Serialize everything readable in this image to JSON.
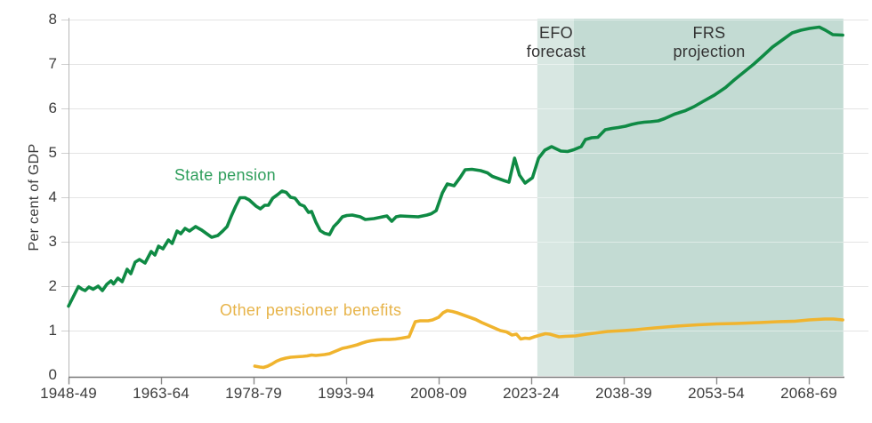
{
  "chart_data": {
    "type": "line",
    "title": "",
    "ylabel": "Per cent of GDP",
    "xlabel": "",
    "ylim": [
      0,
      8
    ],
    "xlim": [
      1948,
      2077.6
    ],
    "grid": true,
    "legend_position": "inline-labels",
    "y_axis": {
      "ticks": [
        0,
        1,
        2,
        3,
        4,
        5,
        6,
        7,
        8
      ]
    },
    "x_axis": {
      "ticks": [
        {
          "year": 1948,
          "label": "1948-49"
        },
        {
          "year": 1963,
          "label": "1963-64"
        },
        {
          "year": 1978,
          "label": "1978-79"
        },
        {
          "year": 1993,
          "label": "1993-94"
        },
        {
          "year": 2008,
          "label": "2008-09"
        },
        {
          "year": 2023,
          "label": "2023-24"
        },
        {
          "year": 2038,
          "label": "2038-39"
        },
        {
          "year": 2053,
          "label": "2053-54"
        },
        {
          "year": 2068,
          "label": "2068-69"
        }
      ]
    },
    "bands": [
      {
        "id": "efo",
        "name": "EFO forecast",
        "label_line1": "EFO",
        "label_line2": "forecast",
        "start_year": 2024.0,
        "end_year": 2029.9,
        "color": "#d8e7e2"
      },
      {
        "id": "frs",
        "name": "FRS projection",
        "label_line1": "FRS",
        "label_line2": "projection",
        "start_year": 2029.9,
        "end_year": 2073.6,
        "color": "#c3dbd3"
      }
    ],
    "series": [
      {
        "name": "State pension",
        "color": "#0f8a44",
        "label_color": "#2f9e5c",
        "points": [
          [
            1948,
            1.55
          ],
          [
            1949.6,
            1.99
          ],
          [
            1950.2,
            1.93
          ],
          [
            1950.7,
            1.9
          ],
          [
            1951.3,
            1.98
          ],
          [
            1952,
            1.93
          ],
          [
            1952.8,
            2.0
          ],
          [
            1953.5,
            1.9
          ],
          [
            1954.2,
            2.04
          ],
          [
            1954.9,
            2.12
          ],
          [
            1955.3,
            2.05
          ],
          [
            1956,
            2.18
          ],
          [
            1956.7,
            2.1
          ],
          [
            1957.5,
            2.38
          ],
          [
            1958.1,
            2.28
          ],
          [
            1958.8,
            2.54
          ],
          [
            1959.5,
            2.6
          ],
          [
            1960.4,
            2.52
          ],
          [
            1961.4,
            2.78
          ],
          [
            1962,
            2.7
          ],
          [
            1962.6,
            2.9
          ],
          [
            1963.3,
            2.84
          ],
          [
            1964.2,
            3.04
          ],
          [
            1964.8,
            2.96
          ],
          [
            1965.6,
            3.24
          ],
          [
            1966.2,
            3.18
          ],
          [
            1966.9,
            3.3
          ],
          [
            1967.6,
            3.24
          ],
          [
            1968.6,
            3.34
          ],
          [
            1969.6,
            3.26
          ],
          [
            1970.3,
            3.19
          ],
          [
            1971.2,
            3.1
          ],
          [
            1972.2,
            3.14
          ],
          [
            1973,
            3.24
          ],
          [
            1973.7,
            3.34
          ],
          [
            1974.4,
            3.58
          ],
          [
            1975.1,
            3.8
          ],
          [
            1975.8,
            3.99
          ],
          [
            1976.6,
            3.99
          ],
          [
            1977.3,
            3.94
          ],
          [
            1978.4,
            3.8
          ],
          [
            1979.1,
            3.74
          ],
          [
            1979.8,
            3.82
          ],
          [
            1980.4,
            3.82
          ],
          [
            1981.1,
            3.98
          ],
          [
            1981.9,
            4.06
          ],
          [
            1982.6,
            4.14
          ],
          [
            1983.3,
            4.11
          ],
          [
            1984,
            4.0
          ],
          [
            1984.7,
            3.98
          ],
          [
            1985.5,
            3.84
          ],
          [
            1986.2,
            3.8
          ],
          [
            1986.9,
            3.66
          ],
          [
            1987.4,
            3.68
          ],
          [
            1988.1,
            3.44
          ],
          [
            1988.8,
            3.25
          ],
          [
            1989.5,
            3.19
          ],
          [
            1990.3,
            3.16
          ],
          [
            1991,
            3.34
          ],
          [
            1991.7,
            3.44
          ],
          [
            1992.4,
            3.56
          ],
          [
            1993.1,
            3.59
          ],
          [
            1994,
            3.6
          ],
          [
            1995.3,
            3.56
          ],
          [
            1996.1,
            3.5
          ],
          [
            1997.5,
            3.52
          ],
          [
            1998.9,
            3.56
          ],
          [
            1999.6,
            3.58
          ],
          [
            2000.4,
            3.46
          ],
          [
            2001.1,
            3.56
          ],
          [
            2001.8,
            3.58
          ],
          [
            2003.2,
            3.57
          ],
          [
            2004.7,
            3.56
          ],
          [
            2006.1,
            3.6
          ],
          [
            2006.8,
            3.63
          ],
          [
            2007.6,
            3.7
          ],
          [
            2008.6,
            4.1
          ],
          [
            2009.4,
            4.3
          ],
          [
            2010.5,
            4.26
          ],
          [
            2011.5,
            4.45
          ],
          [
            2012.3,
            4.62
          ],
          [
            2013.4,
            4.63
          ],
          [
            2014.8,
            4.6
          ],
          [
            2015.9,
            4.55
          ],
          [
            2016.7,
            4.47
          ],
          [
            2017.7,
            4.42
          ],
          [
            2018.7,
            4.37
          ],
          [
            2019.4,
            4.34
          ],
          [
            2020.3,
            4.88
          ],
          [
            2021.1,
            4.5
          ],
          [
            2022,
            4.32
          ],
          [
            2023.2,
            4.44
          ],
          [
            2024.2,
            4.88
          ],
          [
            2025.2,
            5.06
          ],
          [
            2026.3,
            5.14
          ],
          [
            2027.8,
            5.04
          ],
          [
            2028.9,
            5.03
          ],
          [
            2029.9,
            5.07
          ],
          [
            2031.1,
            5.14
          ],
          [
            2031.8,
            5.3
          ],
          [
            2032.8,
            5.34
          ],
          [
            2033.8,
            5.35
          ],
          [
            2035,
            5.52
          ],
          [
            2036.1,
            5.55
          ],
          [
            2037.1,
            5.57
          ],
          [
            2038.3,
            5.6
          ],
          [
            2039.3,
            5.64
          ],
          [
            2040.3,
            5.67
          ],
          [
            2041.3,
            5.69
          ],
          [
            2042.3,
            5.7
          ],
          [
            2043.6,
            5.72
          ],
          [
            2044.6,
            5.77
          ],
          [
            2046.2,
            5.87
          ],
          [
            2048,
            5.95
          ],
          [
            2049.4,
            6.04
          ],
          [
            2050.9,
            6.16
          ],
          [
            2052.7,
            6.3
          ],
          [
            2054.5,
            6.47
          ],
          [
            2055.9,
            6.64
          ],
          [
            2057.5,
            6.82
          ],
          [
            2059.1,
            7.0
          ],
          [
            2060.7,
            7.2
          ],
          [
            2062.1,
            7.38
          ],
          [
            2063.8,
            7.55
          ],
          [
            2065.3,
            7.7
          ],
          [
            2066.7,
            7.76
          ],
          [
            2068.1,
            7.8
          ],
          [
            2069.7,
            7.83
          ],
          [
            2070.7,
            7.76
          ],
          [
            2071.9,
            7.66
          ],
          [
            2073.5,
            7.65
          ]
        ]
      },
      {
        "name": "Other pensioner benefits",
        "color": "#f0b42e",
        "label_color": "#e7b44a",
        "points": [
          [
            1978.2,
            0.2
          ],
          [
            1979,
            0.18
          ],
          [
            1979.6,
            0.17
          ],
          [
            1980.3,
            0.2
          ],
          [
            1981,
            0.25
          ],
          [
            1981.7,
            0.31
          ],
          [
            1982.4,
            0.35
          ],
          [
            1983.2,
            0.38
          ],
          [
            1984,
            0.4
          ],
          [
            1985,
            0.41
          ],
          [
            1986,
            0.42
          ],
          [
            1986.7,
            0.43
          ],
          [
            1987.4,
            0.45
          ],
          [
            1988.1,
            0.44
          ],
          [
            1988.8,
            0.45
          ],
          [
            1989.5,
            0.46
          ],
          [
            1990.3,
            0.48
          ],
          [
            1991,
            0.52
          ],
          [
            1991.7,
            0.56
          ],
          [
            1992.4,
            0.6
          ],
          [
            1993.1,
            0.62
          ],
          [
            1994,
            0.65
          ],
          [
            1994.8,
            0.68
          ],
          [
            1995.6,
            0.72
          ],
          [
            1996.3,
            0.75
          ],
          [
            1997,
            0.77
          ],
          [
            1998,
            0.79
          ],
          [
            1999,
            0.8
          ],
          [
            2000,
            0.8
          ],
          [
            2001,
            0.81
          ],
          [
            2002,
            0.83
          ],
          [
            2003.2,
            0.86
          ],
          [
            2004.2,
            1.2
          ],
          [
            2005,
            1.22
          ],
          [
            2006.3,
            1.22
          ],
          [
            2007,
            1.24
          ],
          [
            2008,
            1.3
          ],
          [
            2008.7,
            1.4
          ],
          [
            2009.4,
            1.45
          ],
          [
            2010.2,
            1.43
          ],
          [
            2011,
            1.4
          ],
          [
            2012,
            1.35
          ],
          [
            2013,
            1.3
          ],
          [
            2014,
            1.25
          ],
          [
            2015,
            1.18
          ],
          [
            2016,
            1.12
          ],
          [
            2017,
            1.06
          ],
          [
            2018,
            1.0
          ],
          [
            2019,
            0.97
          ],
          [
            2019.9,
            0.9
          ],
          [
            2020.6,
            0.92
          ],
          [
            2021.3,
            0.81
          ],
          [
            2022,
            0.83
          ],
          [
            2022.7,
            0.82
          ],
          [
            2023.5,
            0.86
          ],
          [
            2024.5,
            0.9
          ],
          [
            2025.3,
            0.93
          ],
          [
            2026,
            0.92
          ],
          [
            2027.5,
            0.86
          ],
          [
            2028.5,
            0.87
          ],
          [
            2030.2,
            0.88
          ],
          [
            2032,
            0.92
          ],
          [
            2035.4,
            0.98
          ],
          [
            2038,
            1.0
          ],
          [
            2040,
            1.02
          ],
          [
            2043,
            1.06
          ],
          [
            2046.5,
            1.1
          ],
          [
            2050,
            1.13
          ],
          [
            2053,
            1.15
          ],
          [
            2056.2,
            1.16
          ],
          [
            2060,
            1.18
          ],
          [
            2063,
            1.2
          ],
          [
            2065.7,
            1.21
          ],
          [
            2068,
            1.24
          ],
          [
            2070.6,
            1.26
          ],
          [
            2072,
            1.26
          ],
          [
            2073.5,
            1.24
          ]
        ]
      }
    ],
    "colors": {
      "state_pension_line": "#0f8a44",
      "other_benefits_line": "#f0b42e",
      "efo_band": "#d8e7e2",
      "frs_band": "#c3dbd3",
      "gridline": "#e4e4e4",
      "axis_text": "#3c3c3c"
    }
  }
}
